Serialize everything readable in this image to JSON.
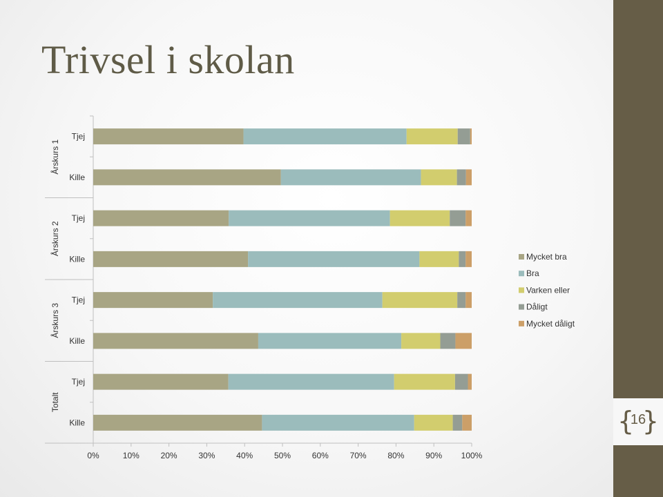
{
  "slide": {
    "title": "Trivsel i skolan",
    "page_number": "16"
  },
  "colors": {
    "background": "#f7f7f7",
    "accent_band": "#665d47",
    "title": "#5f5b47"
  },
  "chart_data": {
    "type": "bar",
    "orientation": "horizontal",
    "stacked": "percent",
    "groups": [
      {
        "name": "Årskurs 1",
        "categories": [
          "Tjej",
          "Kille"
        ]
      },
      {
        "name": "Årskurs 2",
        "categories": [
          "Tjej",
          "Kille"
        ]
      },
      {
        "name": "Årskurs 3",
        "categories": [
          "Tjej",
          "Kille"
        ]
      },
      {
        "name": "Totalt",
        "categories": [
          "Tjej",
          "Kille"
        ]
      }
    ],
    "categories": [
      "Årskurs 1 Tjej",
      "Årskurs 1 Kille",
      "Årskurs 2 Tjej",
      "Årskurs 2 Kille",
      "Årskurs 3 Tjej",
      "Årskurs 3 Kille",
      "Totalt Tjej",
      "Totalt Kille"
    ],
    "series": [
      {
        "name": "Mycket bra",
        "color": "#a8a584",
        "values": [
          39.7,
          49.6,
          35.8,
          40.9,
          31.6,
          43.6,
          35.7,
          44.6
        ]
      },
      {
        "name": "Bra",
        "color": "#9bbcbc",
        "values": [
          43.1,
          37.0,
          42.6,
          45.3,
          44.8,
          37.8,
          43.8,
          40.2
        ]
      },
      {
        "name": "Varken eller",
        "color": "#d2cd6e",
        "values": [
          13.5,
          9.5,
          15.8,
          10.4,
          19.8,
          10.3,
          16.1,
          10.2
        ]
      },
      {
        "name": "Dåligt",
        "color": "#949d94",
        "values": [
          3.3,
          2.4,
          4.2,
          1.8,
          2.2,
          4.0,
          3.4,
          2.5
        ]
      },
      {
        "name": "Mycket dåligt",
        "color": "#cc9f68",
        "values": [
          0.4,
          1.5,
          1.6,
          1.6,
          1.6,
          4.3,
          1.0,
          2.5
        ]
      }
    ],
    "x_ticks": [
      "0%",
      "10%",
      "20%",
      "30%",
      "40%",
      "50%",
      "60%",
      "70%",
      "80%",
      "90%",
      "100%"
    ],
    "xlim": [
      0,
      100
    ],
    "grid": false,
    "legend_position": "right"
  }
}
